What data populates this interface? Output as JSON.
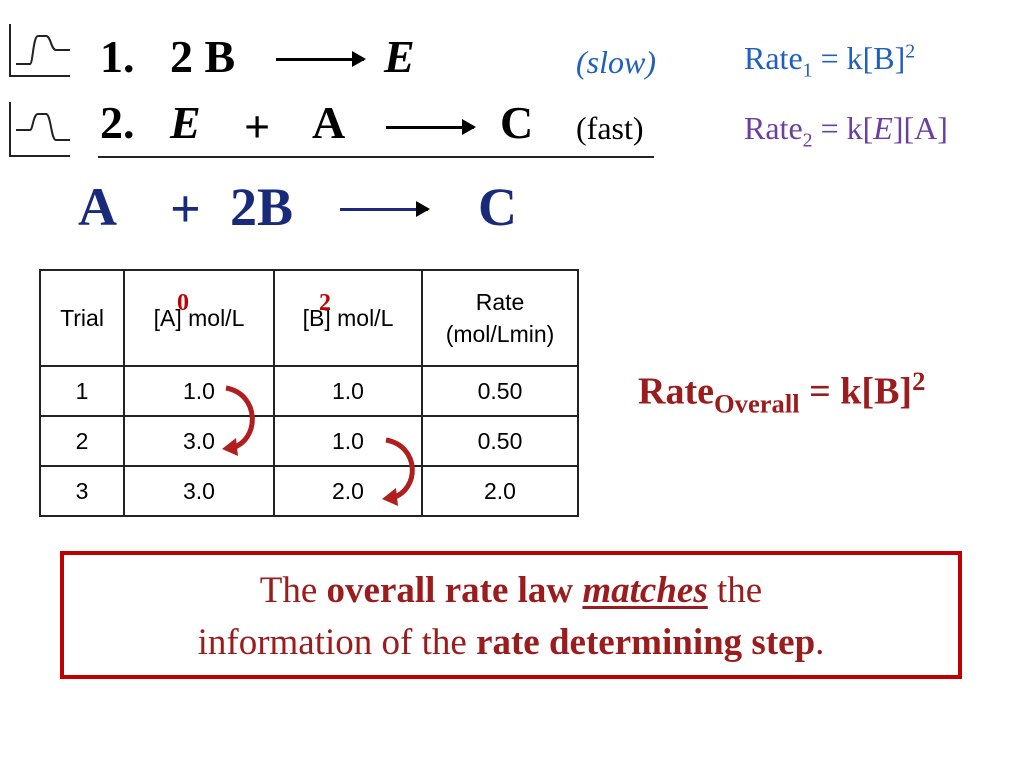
{
  "step1": {
    "number": "1.",
    "coef": "2 B",
    "product": "E",
    "speed": "(slow)",
    "rate_label": "Rate",
    "rate_sub": "1",
    "rate_expr": " = k[B]",
    "rate_exp": "2"
  },
  "step2": {
    "number": "2.",
    "reactant1": "E",
    "plus": "+",
    "reactant2": "A",
    "product": "C",
    "speed": "(fast)",
    "rate_label": "Rate",
    "rate_sub": "2",
    "rate_expr_a": " = k[",
    "rate_expr_e": "E",
    "rate_expr_b": "][A]"
  },
  "overall": {
    "reactant1": "A",
    "plus": "+",
    "reactant2": "2B",
    "product": "C"
  },
  "table": {
    "headers": {
      "trial": "Trial",
      "a": "[A] mol/L",
      "b": "[B] mol/L",
      "rate_line1": "Rate",
      "rate_line2": "(mol/Lmin)"
    },
    "order_a": "0",
    "order_b": "2",
    "rows": [
      [
        "1",
        "1.0",
        "1.0",
        "0.50"
      ],
      [
        "2",
        "3.0",
        "1.0",
        "0.50"
      ],
      [
        "3",
        "3.0",
        "2.0",
        "2.0"
      ]
    ]
  },
  "rate_overall": {
    "label": "Rate",
    "sub": "Overall",
    "expr": " = k[B]",
    "exp": "2"
  },
  "conclusion": {
    "p1": "The ",
    "b1": "overall rate law",
    "p2": " ",
    "u1": "matches",
    "p3": " the",
    "p4": "information of the ",
    "b2": "rate determining step",
    "p5": "."
  },
  "colors": {
    "blue": "#1f5fbf",
    "purple": "#6b3fa0",
    "navy": "#1a2a7a",
    "dark_red": "#9a1c1c",
    "red": "#c00000"
  },
  "icons": [
    "energy-profile-icon",
    "energy-profile-icon",
    "curved-arrow-icon",
    "curved-arrow-icon"
  ]
}
